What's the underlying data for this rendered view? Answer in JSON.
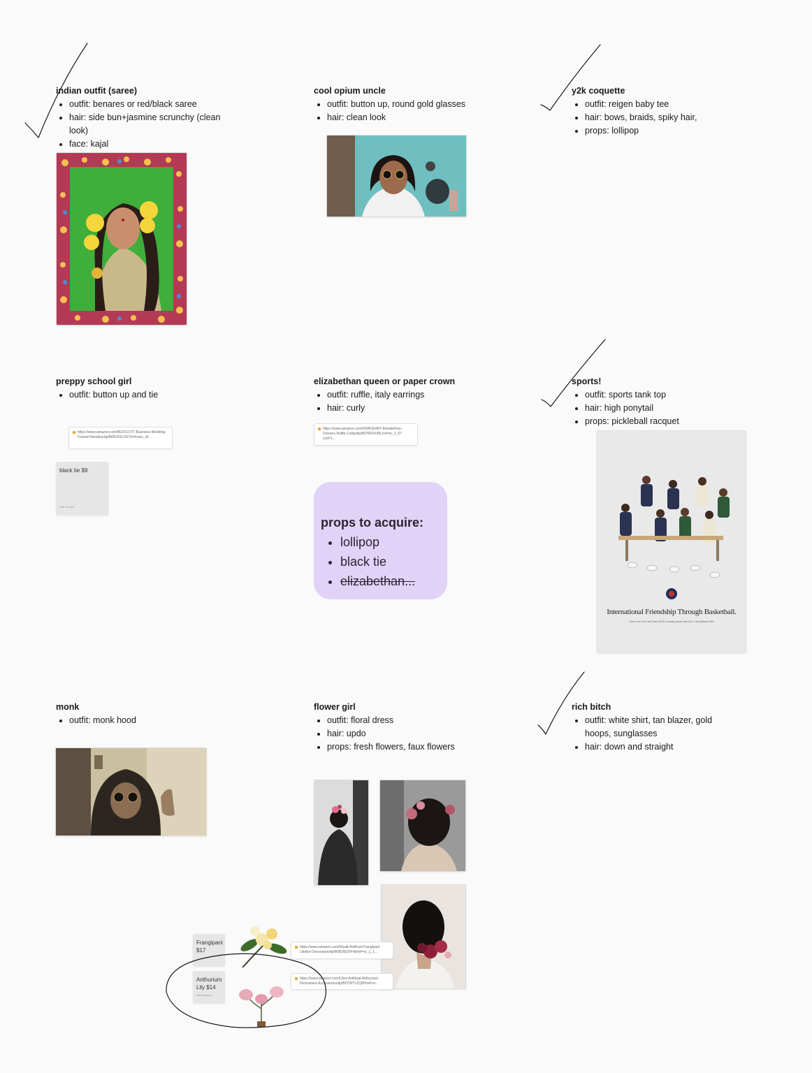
{
  "sections": {
    "indian": {
      "title": "indian outfit (saree)",
      "items": [
        "outfit: benares  or red/black saree",
        "hair: side bun+jasmine scrunchy (clean look)",
        "face: kajal"
      ]
    },
    "opium": {
      "title": "cool opium uncle",
      "items": [
        "outfit: button up, round gold glasses",
        "hair: clean look"
      ]
    },
    "y2k": {
      "title": "y2k coquette",
      "items": [
        "outfit: reigen baby tee",
        "hair: bows, braids, spiky hair,",
        "props: lollipop"
      ]
    },
    "preppy": {
      "title": "preppy school girl",
      "items": [
        "outfit: button up and tie"
      ]
    },
    "elizabethan": {
      "title": "elizabethan queen or paper crown",
      "items": [
        "outfit: ruffle, italy earrings",
        "hair: curly"
      ]
    },
    "sports": {
      "title": "sports!",
      "items": [
        "outfit: sports tank top",
        "hair: high ponytail",
        "props: pickleball racquet"
      ]
    },
    "monk": {
      "title": "monk",
      "items": [
        "outfit: monk hood"
      ]
    },
    "flower": {
      "title": "flower girl",
      "items": [
        "outfit: floral dress",
        "hair: updo",
        "props: fresh flowers, faux flowers"
      ]
    },
    "rich": {
      "title": "rich bitch",
      "items": [
        "outfit: white shirt, tan blazer, gold hoops, sunglasses",
        "hair: down and straight"
      ]
    }
  },
  "sticky": {
    "title": "props to acquire:",
    "items": [
      "lollipop",
      "black tie",
      "elizabethan..."
    ]
  },
  "links": {
    "preppy": "https://www.amazon.com/BIZOCOTT-Business-Wedding-Formal-Neckties/dp/B0819SCXEY/ref=asc_df...",
    "elizabethan": "https://www.amazon.com/DRACEART-Elizabethan-Dickens-Ruffle-Collar/dp/B076F6X45L/ref=sr_1_6?crid=1...",
    "frangipani": "https://www.amazon.com/Wyatt-Artificial-Frangipani-Lifelike-Decoration/dp/B0B2WZFF48/ref=sr_1_1...",
    "anthurium": "https://www.amazon.com/Ulcni-Artificial-Anthurium-Permanent-Accessories/dp/B07WT1ZQ9H/ref=sr..."
  },
  "price_cards": {
    "black_tie": {
      "label": "black tie $9",
      "sub": "with Dunder"
    },
    "frangipani": {
      "label": "Frangipani $17",
      "sub": ""
    },
    "anthurium": {
      "label": "Anthurium Lily $14",
      "sub": "with Amazon"
    }
  },
  "poster": {
    "headline": "International Friendship Through Basketball.",
    "subline": "Aimé Leon Dore and Team EDNY proudly present the ALD / New Balance 650"
  },
  "colors": {
    "sticky": "#e1d3f7",
    "ink": "#1a1a1a",
    "background": "#fafafa"
  }
}
